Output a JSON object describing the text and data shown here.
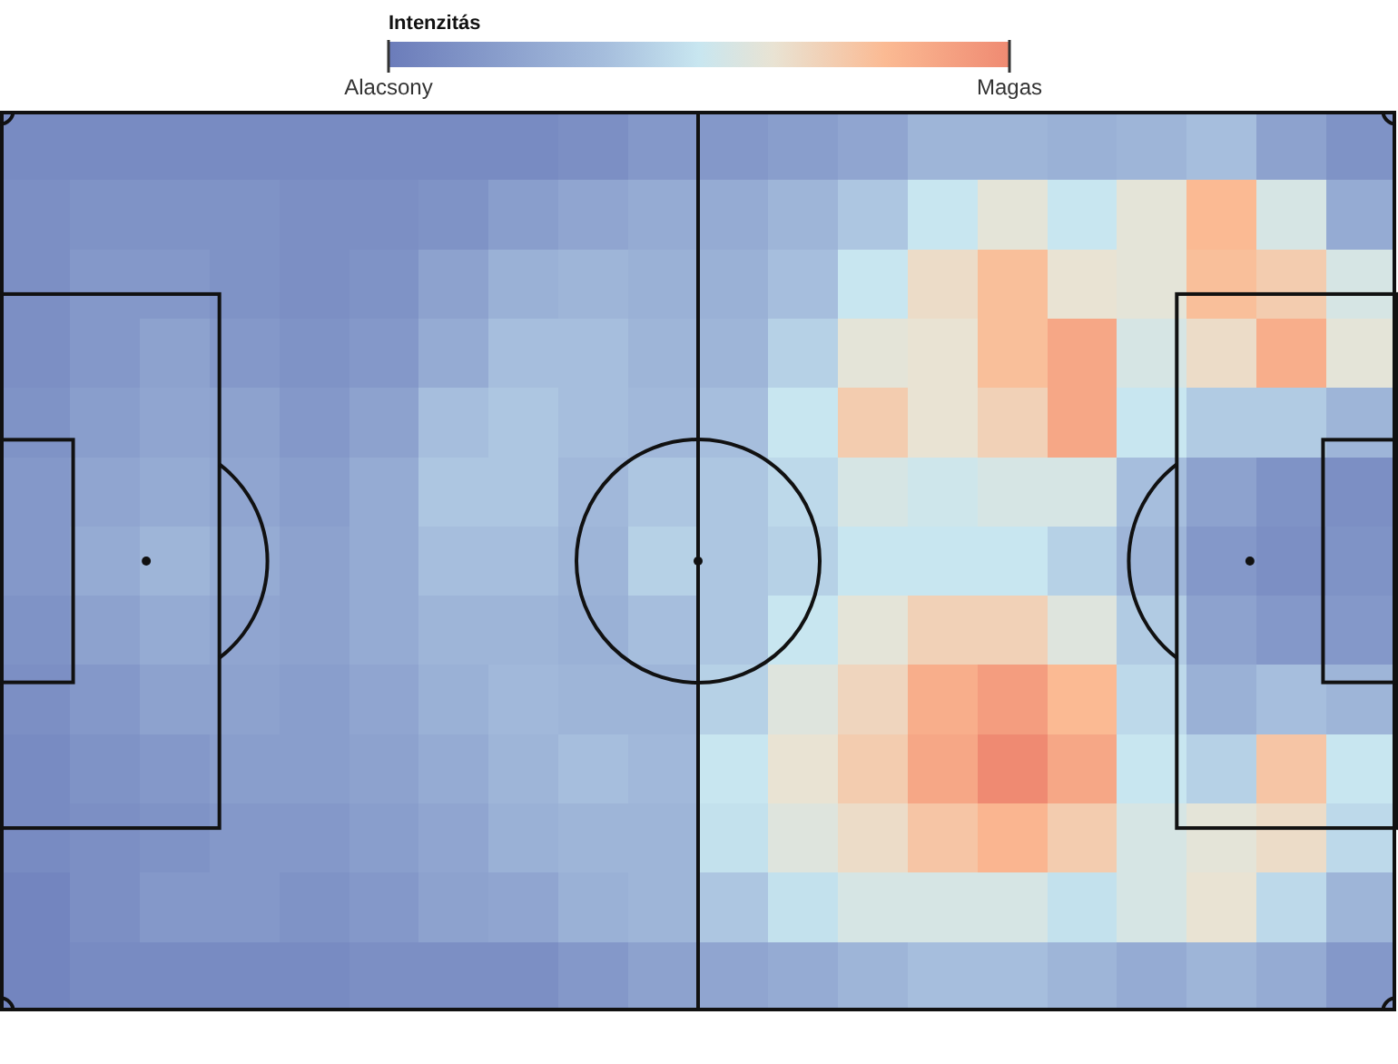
{
  "chart_data": {
    "type": "heatmap",
    "clabel": "Intenzitás",
    "categories": [
      null,
      null,
      null,
      null,
      null,
      null,
      null,
      null,
      null,
      null,
      null,
      null,
      null,
      null,
      null,
      null,
      null,
      null,
      null,
      null
    ],
    "y_categories": [
      null,
      null,
      null,
      null,
      null,
      null,
      null,
      null,
      null,
      null,
      null,
      null,
      null
    ],
    "cells": [
      [
        0.08,
        0.08,
        0.08,
        0.08,
        0.08,
        0.08,
        0.08,
        0.08,
        0.1,
        0.15,
        0.15,
        0.18,
        0.22,
        0.3,
        0.3,
        0.28,
        0.3,
        0.35,
        0.2,
        0.12
      ],
      [
        0.1,
        0.12,
        0.12,
        0.12,
        0.1,
        0.1,
        0.12,
        0.18,
        0.22,
        0.25,
        0.25,
        0.3,
        0.38,
        0.5,
        0.6,
        0.5,
        0.6,
        0.8,
        0.55,
        0.25
      ],
      [
        0.1,
        0.15,
        0.15,
        0.12,
        0.1,
        0.12,
        0.2,
        0.28,
        0.3,
        0.28,
        0.28,
        0.35,
        0.5,
        0.65,
        0.78,
        0.62,
        0.6,
        0.78,
        0.72,
        0.55
      ],
      [
        0.1,
        0.15,
        0.2,
        0.15,
        0.12,
        0.15,
        0.25,
        0.35,
        0.35,
        0.3,
        0.3,
        0.42,
        0.6,
        0.62,
        0.78,
        0.88,
        0.55,
        0.65,
        0.85,
        0.6
      ],
      [
        0.12,
        0.18,
        0.22,
        0.2,
        0.15,
        0.2,
        0.35,
        0.38,
        0.35,
        0.32,
        0.35,
        0.5,
        0.72,
        0.62,
        0.7,
        0.88,
        0.5,
        0.4,
        0.4,
        0.3
      ],
      [
        0.15,
        0.22,
        0.25,
        0.22,
        0.18,
        0.25,
        0.38,
        0.38,
        0.32,
        0.38,
        0.38,
        0.45,
        0.55,
        0.52,
        0.55,
        0.55,
        0.35,
        0.2,
        0.12,
        0.1
      ],
      [
        0.15,
        0.25,
        0.3,
        0.25,
        0.2,
        0.25,
        0.35,
        0.35,
        0.3,
        0.42,
        0.38,
        0.42,
        0.5,
        0.5,
        0.5,
        0.42,
        0.3,
        0.15,
        0.1,
        0.12
      ],
      [
        0.12,
        0.2,
        0.25,
        0.22,
        0.2,
        0.25,
        0.3,
        0.3,
        0.28,
        0.35,
        0.38,
        0.5,
        0.6,
        0.7,
        0.7,
        0.58,
        0.4,
        0.2,
        0.15,
        0.15
      ],
      [
        0.1,
        0.15,
        0.2,
        0.2,
        0.18,
        0.22,
        0.28,
        0.32,
        0.3,
        0.3,
        0.42,
        0.58,
        0.68,
        0.85,
        0.92,
        0.8,
        0.45,
        0.28,
        0.35,
        0.3
      ],
      [
        0.08,
        0.12,
        0.15,
        0.18,
        0.18,
        0.2,
        0.25,
        0.3,
        0.35,
        0.32,
        0.5,
        0.62,
        0.72,
        0.88,
        1.0,
        0.88,
        0.5,
        0.42,
        0.75,
        0.5
      ],
      [
        0.08,
        0.1,
        0.12,
        0.15,
        0.15,
        0.18,
        0.22,
        0.28,
        0.3,
        0.3,
        0.48,
        0.58,
        0.65,
        0.75,
        0.82,
        0.72,
        0.55,
        0.6,
        0.65,
        0.45
      ],
      [
        0.05,
        0.1,
        0.15,
        0.15,
        0.12,
        0.15,
        0.2,
        0.22,
        0.28,
        0.3,
        0.38,
        0.48,
        0.55,
        0.55,
        0.55,
        0.48,
        0.55,
        0.62,
        0.45,
        0.3
      ],
      [
        0.05,
        0.08,
        0.08,
        0.08,
        0.08,
        0.1,
        0.1,
        0.1,
        0.15,
        0.2,
        0.22,
        0.25,
        0.3,
        0.35,
        0.35,
        0.3,
        0.25,
        0.3,
        0.25,
        0.15
      ]
    ],
    "clim": [
      0,
      1
    ],
    "cticks": [
      {
        "value": 0,
        "label": "Alacsony"
      },
      {
        "value": 1,
        "label": "Magas"
      }
    ],
    "tick_labels": false
  }
}
